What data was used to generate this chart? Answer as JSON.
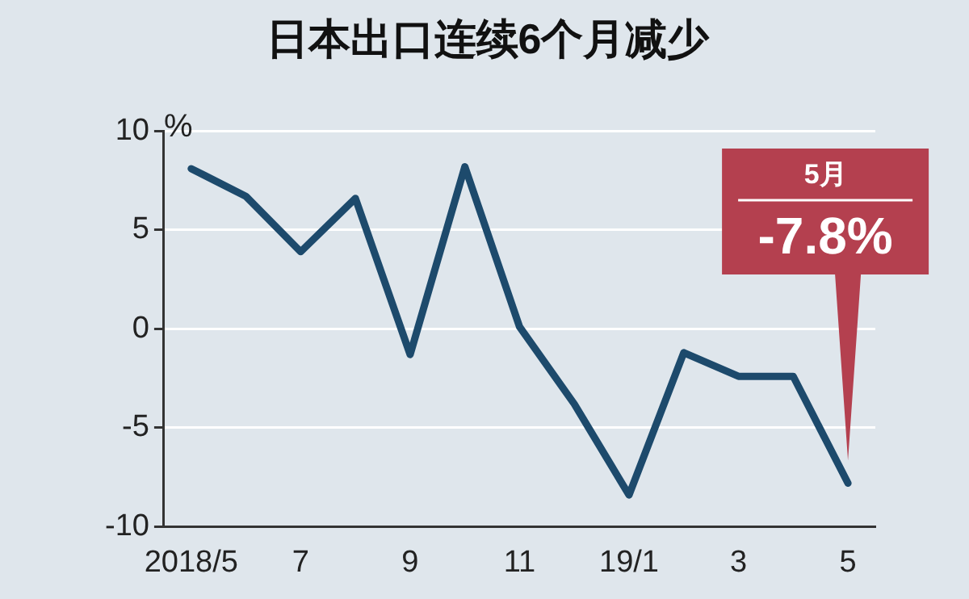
{
  "chart_data": {
    "type": "line",
    "title": "日本出口连续6个月减少",
    "ylabel": "%",
    "categories": [
      "2018/5",
      null,
      "7",
      null,
      "9",
      null,
      "11",
      null,
      "19/1",
      null,
      "3",
      null,
      "5"
    ],
    "series": [
      {
        "color": "#1d4a6c",
        "values": [
          8.1,
          6.7,
          3.9,
          6.6,
          -1.3,
          8.2,
          0.1,
          -3.8,
          -8.4,
          -1.2,
          -2.4,
          -2.4,
          -7.8
        ]
      }
    ],
    "ylim": [
      -10,
      10
    ],
    "yticks": [
      -10,
      -5,
      0,
      5,
      10
    ],
    "grid": "y",
    "legend": false,
    "marker": "none",
    "line_style": "solid",
    "annotations": [
      "5月\n-7.8%"
    ]
  }
}
